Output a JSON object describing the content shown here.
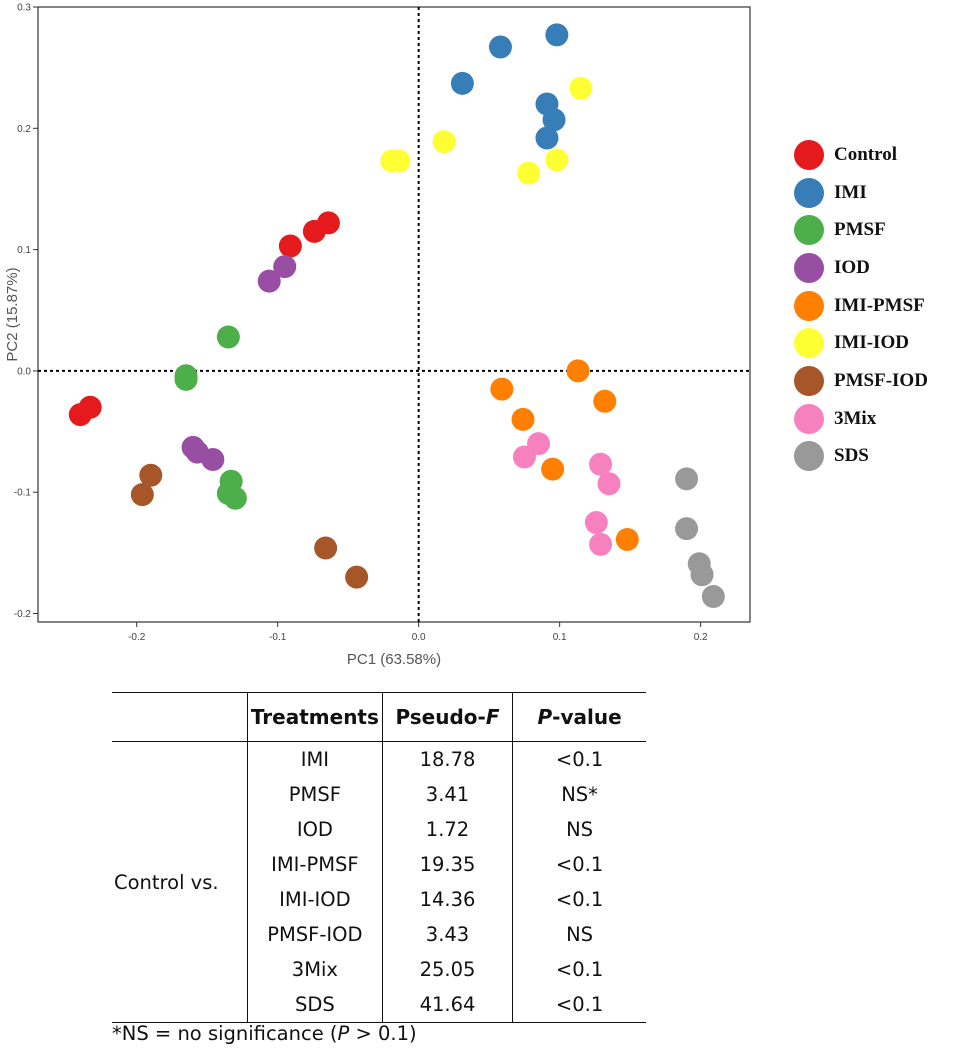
{
  "chart_data": {
    "type": "scatter",
    "xlabel": "PC1 (63.58%)",
    "ylabel": "PC2 (15.87%)",
    "xlim": [
      -0.27,
      0.235
    ],
    "ylim": [
      -0.207,
      0.3
    ],
    "x_ticks": [
      -0.2,
      -0.1,
      0.0,
      0.1,
      0.2
    ],
    "x_tick_labels": [
      "-0.2",
      "-0.1",
      "0.0",
      "0.1",
      "0.2"
    ],
    "y_ticks": [
      -0.2,
      -0.1,
      0.0,
      0.1,
      0.2,
      0.3
    ],
    "y_tick_labels": [
      "-0.2",
      "-0.1",
      "0.0",
      "0.1",
      "0.2",
      "0.3"
    ],
    "reference_lines": {
      "x": 0,
      "y": 0
    },
    "grid": false,
    "legend_position": "right",
    "series": [
      {
        "name": "Control",
        "color": "#e41a1c",
        "points": [
          [
            -0.24,
            -0.036
          ],
          [
            -0.233,
            -0.03
          ],
          [
            -0.091,
            0.103
          ],
          [
            -0.074,
            0.115
          ],
          [
            -0.064,
            0.122
          ]
        ]
      },
      {
        "name": "IMI",
        "color": "#377eb8",
        "points": [
          [
            0.031,
            0.237
          ],
          [
            0.058,
            0.267
          ],
          [
            0.098,
            0.277
          ],
          [
            0.091,
            0.22
          ],
          [
            0.096,
            0.207
          ],
          [
            0.091,
            0.192
          ]
        ]
      },
      {
        "name": "PMSF",
        "color": "#4daf4a",
        "points": [
          [
            -0.135,
            0.028
          ],
          [
            -0.165,
            -0.004
          ],
          [
            -0.165,
            -0.007
          ],
          [
            -0.133,
            -0.091
          ],
          [
            -0.135,
            -0.101
          ],
          [
            -0.13,
            -0.105
          ]
        ]
      },
      {
        "name": "IOD",
        "color": "#984ea3",
        "points": [
          [
            -0.106,
            0.074
          ],
          [
            -0.095,
            0.086
          ],
          [
            -0.16,
            -0.063
          ],
          [
            -0.157,
            -0.067
          ],
          [
            -0.146,
            -0.073
          ]
        ]
      },
      {
        "name": "IMI-PMSF",
        "color": "#ff7f00",
        "points": [
          [
            0.113,
            0.0
          ],
          [
            0.059,
            -0.015
          ],
          [
            0.132,
            -0.025
          ],
          [
            0.074,
            -0.04
          ],
          [
            0.095,
            -0.081
          ],
          [
            0.148,
            -0.139
          ]
        ]
      },
      {
        "name": "IMI-IOD",
        "color": "#ffff33",
        "points": [
          [
            0.115,
            0.233
          ],
          [
            0.018,
            0.189
          ],
          [
            -0.019,
            0.173
          ],
          [
            -0.014,
            0.173
          ],
          [
            0.098,
            0.174
          ],
          [
            0.078,
            0.163
          ]
        ]
      },
      {
        "name": "PMSF-IOD",
        "color": "#a65628",
        "points": [
          [
            -0.19,
            -0.086
          ],
          [
            -0.196,
            -0.102
          ],
          [
            -0.066,
            -0.146
          ],
          [
            -0.044,
            -0.17
          ]
        ]
      },
      {
        "name": "3Mix",
        "color": "#f781bf",
        "points": [
          [
            0.085,
            -0.06
          ],
          [
            0.075,
            -0.071
          ],
          [
            0.129,
            -0.077
          ],
          [
            0.135,
            -0.093
          ],
          [
            0.126,
            -0.125
          ],
          [
            0.129,
            -0.143
          ]
        ]
      },
      {
        "name": "SDS",
        "color": "#999999",
        "points": [
          [
            0.19,
            -0.089
          ],
          [
            0.19,
            -0.13
          ],
          [
            0.199,
            -0.159
          ],
          [
            0.201,
            -0.168
          ],
          [
            0.209,
            -0.186
          ]
        ]
      }
    ]
  },
  "table": {
    "headers": {
      "treatments": "Treatments",
      "pseudo_f_prefix": "Pseudo-",
      "pseudo_f_italic": "F",
      "p_italic": "P",
      "p_suffix": "-value"
    },
    "group_label": "Control vs.",
    "rows": [
      {
        "treatment": "IMI",
        "pseudo_f": "18.78",
        "p_value": "<0.1"
      },
      {
        "treatment": "PMSF",
        "pseudo_f": "3.41",
        "p_value": "NS*"
      },
      {
        "treatment": "IOD",
        "pseudo_f": "1.72",
        "p_value": "NS"
      },
      {
        "treatment": "IMI-PMSF",
        "pseudo_f": "19.35",
        "p_value": "<0.1"
      },
      {
        "treatment": "IMI-IOD",
        "pseudo_f": "14.36",
        "p_value": "<0.1"
      },
      {
        "treatment": "PMSF-IOD",
        "pseudo_f": "3.43",
        "p_value": "NS"
      },
      {
        "treatment": "3Mix",
        "pseudo_f": "25.05",
        "p_value": "<0.1"
      },
      {
        "treatment": "SDS",
        "pseudo_f": "41.64",
        "p_value": "<0.1"
      }
    ],
    "footnote": {
      "prefix": "*NS = no significance (",
      "italic": "P",
      "suffix": " > 0.1)"
    }
  }
}
